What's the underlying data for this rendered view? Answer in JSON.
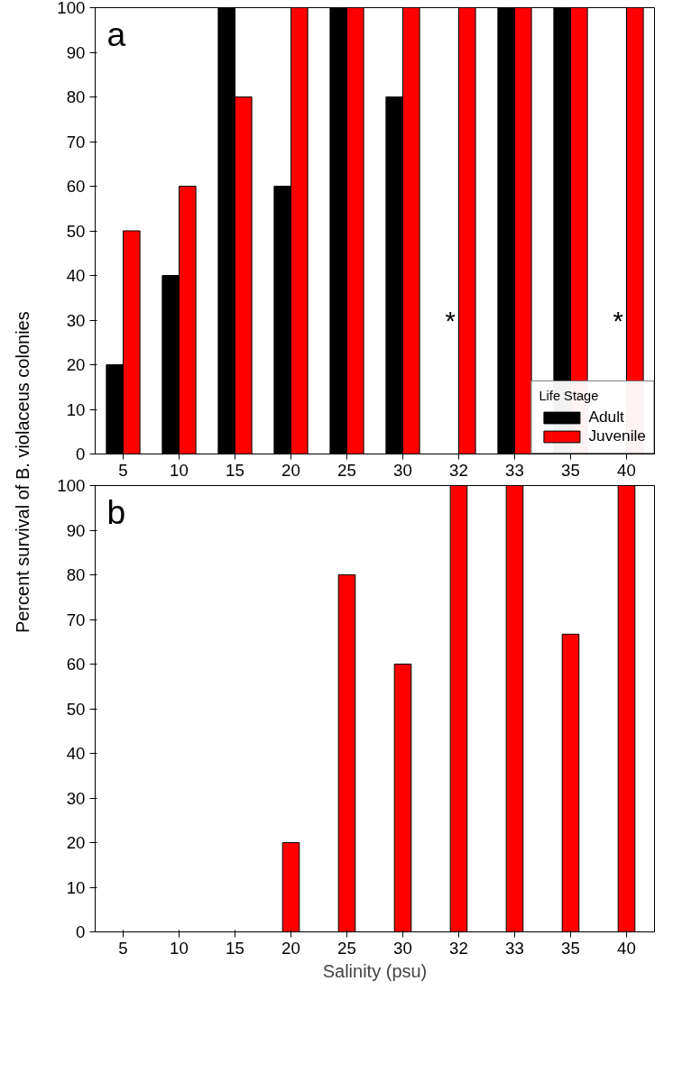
{
  "chart_data": [
    {
      "type": "bar",
      "ylabel": "Percent survival of B. violaceus colonies",
      "categories": [
        "5",
        "10",
        "15",
        "20",
        "25",
        "30",
        "32",
        "33",
        "35",
        "40"
      ],
      "series": [
        {
          "name": "Adult",
          "color": "#000000",
          "values": [
            20,
            40,
            100,
            60,
            100,
            80,
            null,
            100,
            100,
            null
          ]
        },
        {
          "name": "Juvenile",
          "color": "#ff0000",
          "values": [
            50,
            60,
            80,
            100,
            100,
            100,
            100,
            100,
            100,
            100
          ]
        }
      ],
      "ylim": [
        0,
        100
      ],
      "yticks": [
        0,
        10,
        20,
        30,
        40,
        50,
        60,
        70,
        80,
        90,
        100
      ],
      "grid": false,
      "legend": "bottom right",
      "legend_title": "Life Stage",
      "annotations": [
        "a",
        {
          "text": "*",
          "x": "32",
          "y": 30
        },
        {
          "text": "*",
          "x": "40",
          "y": 30
        }
      ]
    },
    {
      "type": "bar",
      "xlabel": "Salinity (psu)",
      "categories": [
        "5",
        "10",
        "15",
        "20",
        "25",
        "30",
        "32",
        "33",
        "35",
        "40"
      ],
      "series": [
        {
          "color": "#ff0000",
          "values": [
            0,
            0,
            0,
            20,
            80,
            60,
            100,
            100,
            66.7,
            100
          ]
        }
      ],
      "ylim": [
        0,
        100
      ],
      "yticks": [
        0,
        10,
        20,
        30,
        40,
        50,
        60,
        70,
        80,
        90,
        100
      ],
      "grid": false,
      "annotations": [
        "b"
      ]
    }
  ]
}
